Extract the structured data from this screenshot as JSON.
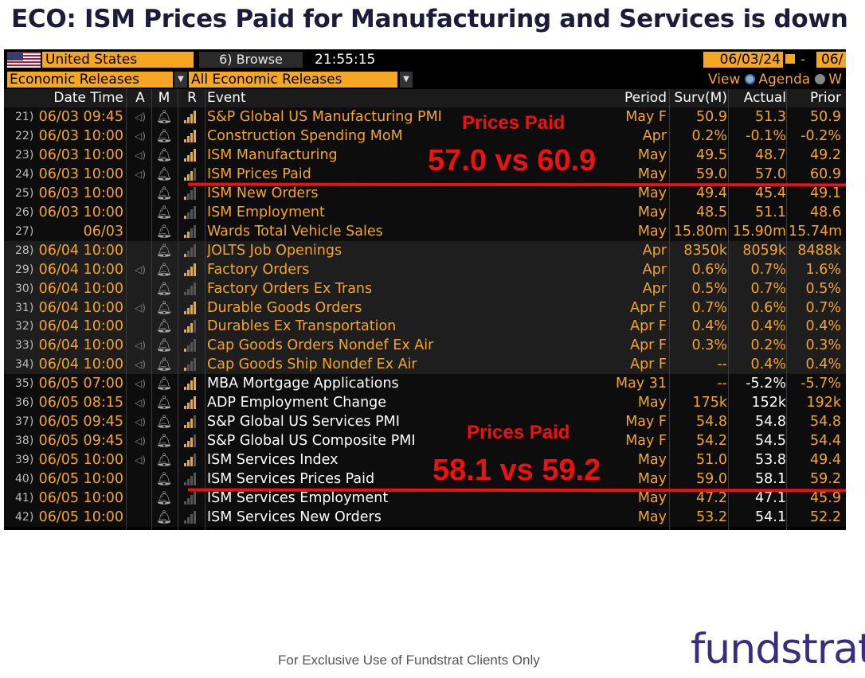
{
  "slide": {
    "title": "ECO: ISM Prices Paid for Manufacturing and Services is down",
    "footer": "For Exclusive Use of Fundstrat Clients Only",
    "logo_text": "fundstrat"
  },
  "terminal": {
    "country": "United States",
    "browse": "Browse",
    "browse_key": "6)",
    "time": "21:55:15",
    "date_from": "06/03/24",
    "date_to": "06/",
    "filter_category": "Economic Releases",
    "filter_events": "All Economic Releases",
    "view_label": "View",
    "view_agenda": "Agenda",
    "view_other": "W"
  },
  "columns": {
    "datetime": "Date Time",
    "a": "A",
    "m": "M",
    "r": "R",
    "event": "Event",
    "period": "Period",
    "surv": "Surv(M)",
    "actual": "Actual",
    "prior": "Prior"
  },
  "rows": [
    {
      "num": "21)",
      "dt": "06/03 09:45",
      "a": true,
      "r": 4,
      "event": "S&P Global US Manufacturing PMI",
      "period": "May F",
      "surv": "50.9",
      "actual": "51.3",
      "prior": "50.9",
      "group": 1
    },
    {
      "num": "22)",
      "dt": "06/03 10:00",
      "a": true,
      "r": 4,
      "event": "Construction Spending MoM",
      "period": "Apr",
      "surv": "0.2%",
      "actual": "-0.1%",
      "prior": "-0.2%",
      "group": 1
    },
    {
      "num": "23)",
      "dt": "06/03 10:00",
      "a": true,
      "r": 4,
      "event": "ISM Manufacturing",
      "period": "May",
      "surv": "49.5",
      "actual": "48.7",
      "prior": "49.2",
      "group": 1
    },
    {
      "num": "24)",
      "dt": "06/03 10:00",
      "a": true,
      "r": 3,
      "event": "ISM Prices Paid",
      "period": "May",
      "surv": "59.0",
      "actual": "57.0",
      "prior": "60.9",
      "group": 1
    },
    {
      "num": "25)",
      "dt": "06/03 10:00",
      "a": false,
      "r": 1,
      "event": "ISM New Orders",
      "period": "May",
      "surv": "49.4",
      "actual": "45.4",
      "prior": "49.1",
      "group": 1
    },
    {
      "num": "26)",
      "dt": "06/03 10:00",
      "a": false,
      "r": 1,
      "event": "ISM Employment",
      "period": "May",
      "surv": "48.5",
      "actual": "51.1",
      "prior": "48.6",
      "group": 1
    },
    {
      "num": "27)",
      "dt": "06/03",
      "a": false,
      "r": 2,
      "event": "Wards Total Vehicle Sales",
      "period": "May",
      "surv": "15.80m",
      "actual": "15.90m",
      "prior": "15.74m",
      "group": 1
    },
    {
      "num": "28)",
      "dt": "06/04 10:00",
      "a": false,
      "r": 1,
      "event": "JOLTS Job Openings",
      "period": "Apr",
      "surv": "8350k",
      "actual": "8059k",
      "prior": "8488k",
      "group": 2
    },
    {
      "num": "29)",
      "dt": "06/04 10:00",
      "a": true,
      "r": 4,
      "event": "Factory Orders",
      "period": "Apr",
      "surv": "0.6%",
      "actual": "0.7%",
      "prior": "1.6%",
      "group": 2
    },
    {
      "num": "30)",
      "dt": "06/04 10:00",
      "a": false,
      "r": 0,
      "event": "Factory Orders Ex Trans",
      "period": "Apr",
      "surv": "0.5%",
      "actual": "0.7%",
      "prior": "0.5%",
      "group": 2
    },
    {
      "num": "31)",
      "dt": "06/04 10:00",
      "a": true,
      "r": 4,
      "event": "Durable Goods Orders",
      "period": "Apr F",
      "surv": "0.7%",
      "actual": "0.6%",
      "prior": "0.7%",
      "group": 2
    },
    {
      "num": "32)",
      "dt": "06/04 10:00",
      "a": false,
      "r": 3,
      "event": "Durables Ex Transportation",
      "period": "Apr F",
      "surv": "0.4%",
      "actual": "0.4%",
      "prior": "0.4%",
      "group": 2
    },
    {
      "num": "33)",
      "dt": "06/04 10:00",
      "a": true,
      "r": 1,
      "event": "Cap Goods Orders Nondef Ex Air",
      "period": "Apr F",
      "surv": "0.3%",
      "actual": "0.2%",
      "prior": "0.3%",
      "group": 2
    },
    {
      "num": "34)",
      "dt": "06/04 10:00",
      "a": true,
      "r": 1,
      "event": "Cap Goods Ship Nondef Ex Air",
      "period": "Apr F",
      "surv": "--",
      "actual": "0.4%",
      "prior": "0.4%",
      "group": 2
    },
    {
      "num": "35)",
      "dt": "06/05 07:00",
      "a": true,
      "r": 4,
      "event": "MBA Mortgage Applications",
      "period": "May 31",
      "surv": "--",
      "actual": "-5.2%",
      "prior": "-5.7%",
      "group": 3
    },
    {
      "num": "36)",
      "dt": "06/05 08:15",
      "a": true,
      "r": 4,
      "event": "ADP Employment Change",
      "period": "May",
      "surv": "175k",
      "actual": "152k",
      "prior": "192k",
      "group": 3
    },
    {
      "num": "37)",
      "dt": "06/05 09:45",
      "a": true,
      "r": 3,
      "event": "S&P Global US Services PMI",
      "period": "May F",
      "surv": "54.8",
      "actual": "54.8",
      "prior": "54.8",
      "group": 3
    },
    {
      "num": "38)",
      "dt": "06/05 09:45",
      "a": true,
      "r": 3,
      "event": "S&P Global US Composite PMI",
      "period": "May F",
      "surv": "54.2",
      "actual": "54.5",
      "prior": "54.4",
      "group": 3
    },
    {
      "num": "39)",
      "dt": "06/05 10:00",
      "a": true,
      "r": 3,
      "event": "ISM Services Index",
      "period": "May",
      "surv": "51.0",
      "actual": "53.8",
      "prior": "49.4",
      "group": 3
    },
    {
      "num": "40)",
      "dt": "06/05 10:00",
      "a": false,
      "r": 0,
      "event": "ISM Services Prices Paid",
      "period": "May",
      "surv": "59.0",
      "actual": "58.1",
      "prior": "59.2",
      "group": 3
    },
    {
      "num": "41)",
      "dt": "06/05 10:00",
      "a": false,
      "r": 0,
      "event": "ISM Services Employment",
      "period": "May",
      "surv": "47.2",
      "actual": "47.1",
      "prior": "45.9",
      "group": 3
    },
    {
      "num": "42)",
      "dt": "06/05 10:00",
      "a": false,
      "r": 0,
      "event": "ISM Services New Orders",
      "period": "May",
      "surv": "53.2",
      "actual": "54.1",
      "prior": "52.2",
      "group": 3
    }
  ],
  "annotations": {
    "mfg_head": "Prices Paid",
    "mfg_big": "57.0 vs 60.9",
    "svc_head": "Prices Paid",
    "svc_big": "58.1 vs 59.2",
    "color": "#ee1111"
  },
  "colors": {
    "amber": "#f5a623",
    "logo": "#3a2d80"
  }
}
